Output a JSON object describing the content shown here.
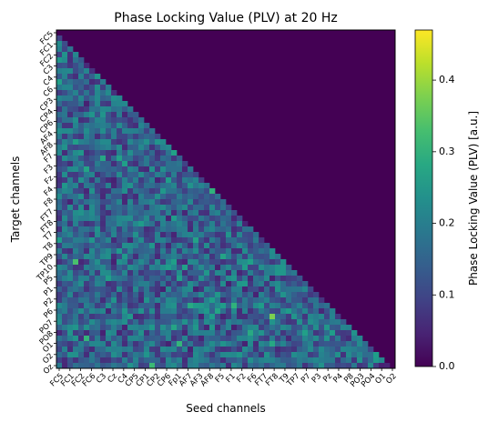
{
  "chart_data": {
    "type": "heatmap",
    "title": "Phase Locking Value (PLV) at 20 Hz",
    "xlabel": "Seed channels",
    "ylabel": "Target channels",
    "colorbar_label": "Phase Locking Value (PLV) [a.u.]",
    "colormap": "viridis",
    "vmin": 0.0,
    "vmax": 0.47,
    "colorbar_ticks": [
      "0.0",
      "0.1",
      "0.2",
      "0.3",
      "0.4"
    ],
    "colorbar_tick_values": [
      0.0,
      0.1,
      0.2,
      0.3,
      0.4
    ],
    "n_channels": 62,
    "structure": "lower-triangular (entries on and above the diagonal are 0.0)",
    "x_tick_labels": [
      "FC5",
      "FC1",
      "FC2",
      "FC6",
      "C3",
      "Cz",
      "C4",
      "CP5",
      "CP1",
      "CP2",
      "CP6",
      "Fp1",
      "AF7",
      "AF3",
      "AF8",
      "F5",
      "F1",
      "F2",
      "F6",
      "FT7",
      "FT8",
      "T9",
      "TP7",
      "P7",
      "P3",
      "Pz",
      "P4",
      "P8",
      "PO3",
      "PO4",
      "O1",
      "O2"
    ],
    "y_tick_labels": [
      "FC5",
      "FC1",
      "FC2",
      "C3",
      "C4",
      "C6",
      "CP3",
      "CP4",
      "CP6",
      "AF4",
      "AF8",
      "F7",
      "F3",
      "Fz",
      "F4",
      "F8",
      "FT7",
      "FT8",
      "T7",
      "T8",
      "TP9",
      "TP10",
      "P5",
      "P1",
      "P2",
      "P6",
      "PO7",
      "PO8",
      "O1",
      "O2",
      "Oz"
    ],
    "values_note": "Lower-triangle PLV values range roughly 0.03 to 0.45, mostly 0.10 to 0.25; highest cells near (row 25, col 10) and (row 58, col 5)"
  }
}
